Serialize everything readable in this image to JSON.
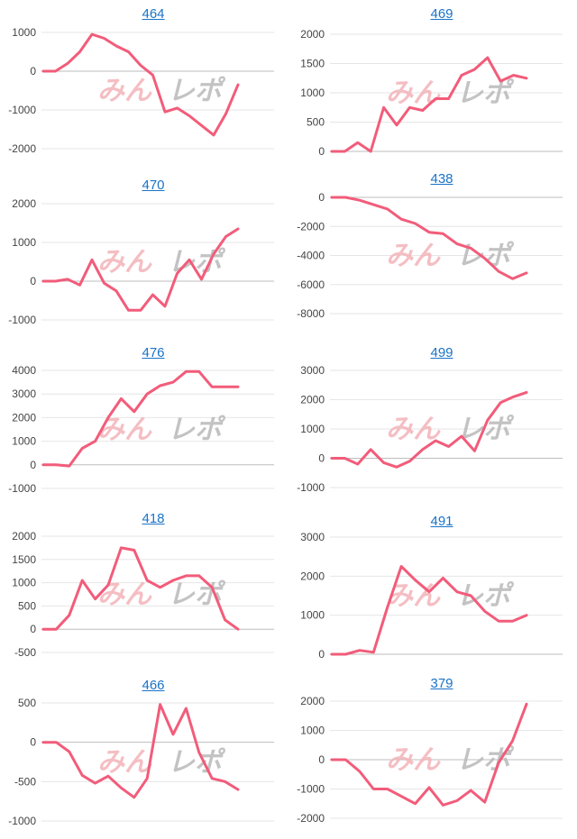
{
  "watermark": {
    "text": "みんレポ"
  },
  "colors": {
    "line": "#f25c7a",
    "grid": "#e6e6e6",
    "zero_line": "#bdbdbd",
    "title_link": "#1a73c8",
    "watermark_pink": "#f3b3b9",
    "watermark_gray": "#b9b9b9"
  },
  "chart_data": [
    {
      "type": "line",
      "title": "464",
      "ylim": [
        -2000,
        1000
      ],
      "yticks": [
        "1000",
        "0",
        "-1000",
        "-2000"
      ],
      "values": [
        0,
        0,
        200,
        500,
        950,
        850,
        650,
        500,
        150,
        -100,
        -1050,
        -950,
        -1150,
        -1400,
        -1650,
        -1100,
        -350
      ]
    },
    {
      "type": "line",
      "title": "469",
      "ylim": [
        0,
        2000
      ],
      "yticks": [
        "2000",
        "1500",
        "1000",
        "500",
        "0"
      ],
      "values": [
        0,
        0,
        150,
        0,
        750,
        450,
        750,
        700,
        900,
        900,
        1300,
        1400,
        1600,
        1200,
        1300,
        1250
      ]
    },
    {
      "type": "line",
      "title": "470",
      "ylim": [
        -1000,
        2000
      ],
      "yticks": [
        "2000",
        "1000",
        "0",
        "-1000"
      ],
      "values": [
        0,
        0,
        50,
        -100,
        550,
        -50,
        -250,
        -750,
        -750,
        -350,
        -650,
        200,
        550,
        50,
        700,
        1150,
        1350
      ]
    },
    {
      "type": "line",
      "title": "438",
      "ylim": [
        -8000,
        0
      ],
      "yticks": [
        "0",
        "-2000",
        "-4000",
        "-6000",
        "-8000"
      ],
      "values": [
        0,
        0,
        -200,
        -500,
        -800,
        -1500,
        -1800,
        -2400,
        -2500,
        -3200,
        -3500,
        -4200,
        -5100,
        -5600,
        -5200
      ]
    },
    {
      "type": "line",
      "title": "476",
      "ylim": [
        -1000,
        4000
      ],
      "yticks": [
        "4000",
        "3000",
        "2000",
        "1000",
        "0",
        "-1000"
      ],
      "values": [
        0,
        0,
        -50,
        700,
        1000,
        2000,
        2800,
        2250,
        3000,
        3350,
        3500,
        3950,
        3950,
        3300,
        3300,
        3300
      ]
    },
    {
      "type": "line",
      "title": "499",
      "ylim": [
        -1000,
        3000
      ],
      "yticks": [
        "3000",
        "2000",
        "1000",
        "0",
        "-1000"
      ],
      "values": [
        0,
        0,
        -200,
        300,
        -150,
        -300,
        -100,
        300,
        600,
        400,
        750,
        250,
        1300,
        1900,
        2100,
        2250
      ]
    },
    {
      "type": "line",
      "title": "418",
      "ylim": [
        -500,
        2000
      ],
      "yticks": [
        "2000",
        "1500",
        "1000",
        "500",
        "0",
        "-500"
      ],
      "values": [
        0,
        0,
        300,
        1050,
        650,
        950,
        1750,
        1700,
        1050,
        900,
        1050,
        1150,
        1150,
        900,
        200,
        0
      ]
    },
    {
      "type": "line",
      "title": "491",
      "ylim": [
        0,
        3000
      ],
      "yticks": [
        "3000",
        "2000",
        "1000",
        "0"
      ],
      "values": [
        0,
        0,
        100,
        50,
        1200,
        2250,
        1900,
        1600,
        1950,
        1600,
        1500,
        1100,
        850,
        850,
        1000
      ]
    },
    {
      "type": "line",
      "title": "466",
      "ylim": [
        -1000,
        500
      ],
      "yticks": [
        "500",
        "0",
        "-500",
        "-1000"
      ],
      "values": [
        0,
        0,
        -120,
        -420,
        -520,
        -430,
        -580,
        -700,
        -460,
        480,
        100,
        430,
        -130,
        -460,
        -500,
        -600
      ]
    },
    {
      "type": "line",
      "title": "379",
      "ylim": [
        -2000,
        2000
      ],
      "yticks": [
        "2000",
        "1000",
        "0",
        "-1000",
        "-2000"
      ],
      "values": [
        0,
        0,
        -400,
        -1000,
        -1000,
        -1250,
        -1500,
        -950,
        -1550,
        -1400,
        -1050,
        -1450,
        -100,
        650,
        1900
      ]
    }
  ]
}
